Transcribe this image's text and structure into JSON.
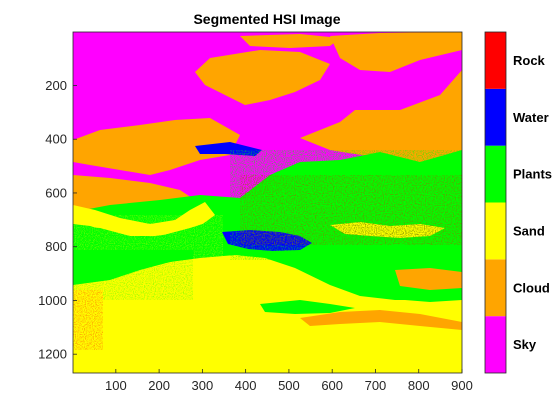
{
  "chart_data": {
    "type": "heatmap",
    "title": "Segmented HSI Image",
    "xlabel": "",
    "ylabel": "",
    "xlim": [
      1,
      900
    ],
    "ylim": [
      1,
      1270
    ],
    "y_reversed": true,
    "x_ticks": [
      100,
      200,
      300,
      400,
      500,
      600,
      700,
      800,
      900
    ],
    "y_ticks": [
      200,
      400,
      600,
      800,
      1000,
      1200
    ],
    "classes": [
      {
        "name": "Sky",
        "color": "#ff00ff"
      },
      {
        "name": "Cloud",
        "color": "#ffa500"
      },
      {
        "name": "Sand",
        "color": "#ffff00"
      },
      {
        "name": "Plants",
        "color": "#00ff00"
      },
      {
        "name": "Water",
        "color": "#0000ff"
      },
      {
        "name": "Rock",
        "color": "#ff0000"
      }
    ],
    "colorbar_order_bottom_to_top": [
      "Sky",
      "Cloud",
      "Sand",
      "Plants",
      "Water",
      "Rock"
    ]
  }
}
